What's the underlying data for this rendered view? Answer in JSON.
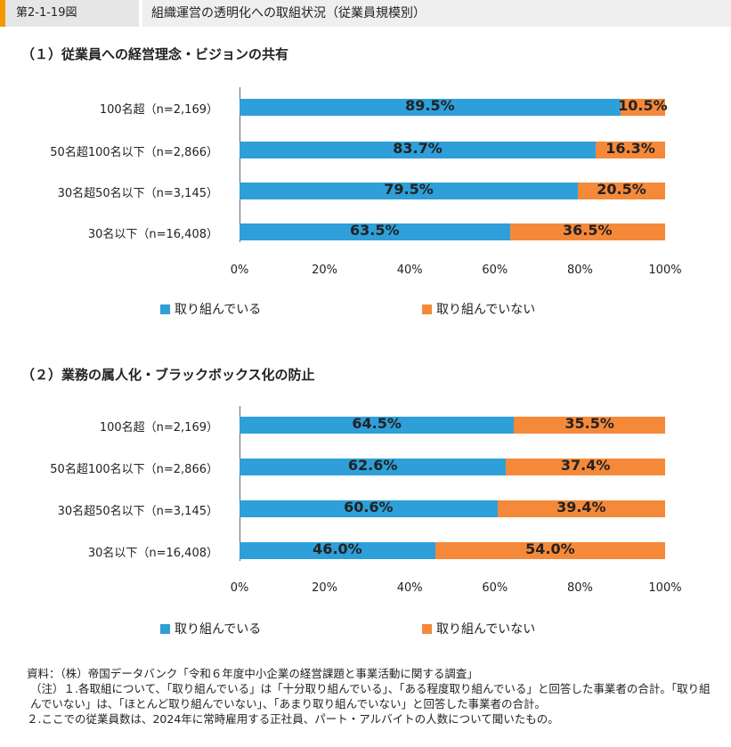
{
  "header": {
    "figure_number": "第2-1-19図",
    "title": "組織運営の透明化への取組状況（従業員規模別）"
  },
  "chart_data": [
    {
      "type": "bar",
      "stacked": true,
      "orientation": "horizontal",
      "title": "（１）従業員への経営理念・ビジョンの共有",
      "categories": [
        "100名超（n=2,169）",
        "50名超100名以下（n=2,866）",
        "30名超50名以下（n=3,145）",
        "30名以下（n=16,408）"
      ],
      "series": [
        {
          "name": "取り組んでいる",
          "color": "#2e9fd8",
          "values": [
            89.5,
            83.7,
            79.5,
            63.5
          ],
          "labels": [
            "89.5%",
            "83.7%",
            "79.5%",
            "63.5%"
          ]
        },
        {
          "name": "取り組んでいない",
          "color": "#f5893a",
          "values": [
            10.5,
            16.3,
            20.5,
            36.5
          ],
          "labels": [
            "10.5%",
            "16.3%",
            "20.5%",
            "36.5%"
          ]
        }
      ],
      "xlim": [
        0,
        100
      ],
      "xticks": [
        "0%",
        "20%",
        "40%",
        "60%",
        "80%",
        "100%"
      ],
      "legend_position": "bottom"
    },
    {
      "type": "bar",
      "stacked": true,
      "orientation": "horizontal",
      "title": "（２）業務の属人化・ブラックボックス化の防止",
      "categories": [
        "100名超（n=2,169）",
        "50名超100名以下（n=2,866）",
        "30名超50名以下（n=3,145）",
        "30名以下（n=16,408）"
      ],
      "series": [
        {
          "name": "取り組んでいる",
          "color": "#2e9fd8",
          "values": [
            64.5,
            62.6,
            60.6,
            46.0
          ],
          "labels": [
            "64.5%",
            "62.6%",
            "60.6%",
            "46.0%"
          ]
        },
        {
          "name": "取り組んでいない",
          "color": "#f5893a",
          "values": [
            35.5,
            37.4,
            39.4,
            54.0
          ],
          "labels": [
            "35.5%",
            "37.4%",
            "39.4%",
            "54.0%"
          ]
        }
      ],
      "xlim": [
        0,
        100
      ],
      "xticks": [
        "0%",
        "20%",
        "40%",
        "60%",
        "80%",
        "100%"
      ],
      "legend_position": "bottom"
    }
  ],
  "notes": [
    "資料：（株）帝国データバンク「令和６年度中小企業の経営課題と事業活動に関する調査」",
    "（注）１.各取組について、「取り組んでいる」は「十分取り組んでいる」、「ある程度取り組んでいる」と回答した事業者の合計。「取り組んでいない」は、「ほとんど取り組んでいない」、「あまり取り組んでいない」と回答した事業者の合計。",
    "２.ここでの従業員数は、2024年に常時雇用する正社員、パート・アルバイトの人数について聞いたもの。"
  ]
}
